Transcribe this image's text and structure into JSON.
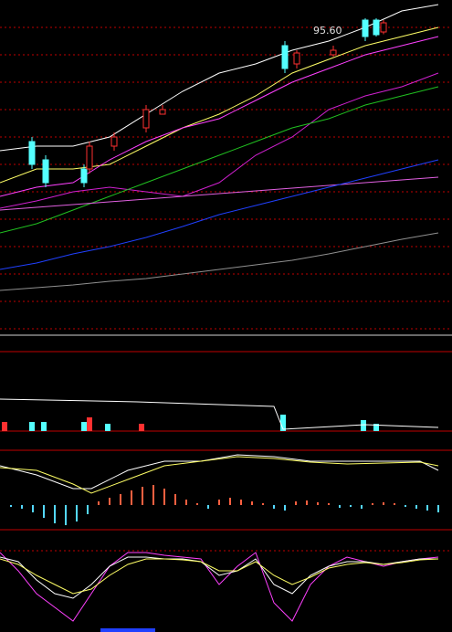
{
  "chart_data": [
    {
      "type": "candlestick",
      "annotation": "95.60",
      "annotation_at": [
        343,
        95.6
      ],
      "xlim": [
        0,
        495
      ],
      "ylim": [
        27,
        100
      ],
      "grid": true,
      "grid_color": "#c00000",
      "yticks": [
        94,
        88,
        82,
        76,
        70,
        64,
        58,
        52,
        46,
        40,
        34,
        28
      ],
      "up_color": "#ff3030",
      "down_color": "#54ffff",
      "x": [
        0,
        40,
        80,
        120,
        160,
        200,
        240,
        280,
        320,
        360,
        400,
        440,
        480
      ],
      "series": [
        {
          "color": "#ffffff",
          "values": [
            67,
            68,
            68,
            70,
            75,
            80,
            84,
            86,
            89,
            91,
            94,
            97.6,
            99
          ]
        },
        {
          "color": "#ffff66",
          "values": [
            60,
            63,
            63,
            64,
            68,
            72,
            75,
            79,
            84,
            87,
            90,
            92,
            94
          ]
        },
        {
          "color": "#ff40ff",
          "values": [
            57,
            59,
            60,
            65,
            69,
            72,
            74,
            78,
            82,
            85,
            88,
            90,
            92
          ]
        },
        {
          "color": "#d020d0",
          "values": [
            54.4,
            56,
            58,
            59,
            58,
            57,
            60,
            66,
            70,
            76,
            79,
            81,
            84
          ]
        },
        {
          "color": "#20c020",
          "values": [
            49,
            51,
            54,
            57,
            60,
            63,
            66,
            69,
            72,
            74,
            77,
            79,
            81
          ]
        },
        {
          "color": "#e060e0",
          "values": [
            54,
            54.6,
            55.2,
            55.8,
            56.4,
            57,
            57.6,
            58.2,
            58.8,
            59.4,
            60,
            60.6,
            61.2
          ]
        },
        {
          "color": "#2040ff",
          "values": [
            41,
            42.4,
            44.4,
            46,
            48,
            50.4,
            53,
            55,
            57,
            59,
            61,
            63,
            65
          ]
        },
        {
          "color": "#909090",
          "values": [
            36.4,
            37,
            37.6,
            38.4,
            39,
            40,
            41,
            42,
            43,
            44.4,
            46,
            47.6,
            49
          ]
        }
      ],
      "candles": {
        "x": [
          35,
          50,
          92,
          98,
          125,
          160,
          178,
          312,
          325,
          365,
          400,
          412,
          420
        ],
        "open": [
          69,
          65,
          63,
          63,
          68,
          72,
          75,
          90,
          86,
          88,
          95.6,
          95.6,
          93
        ],
        "high": [
          70,
          66,
          64,
          69,
          71,
          77,
          77,
          91,
          89,
          90,
          96,
          96,
          95.6
        ],
        "low": [
          63,
          59,
          59,
          62,
          67,
          71,
          75,
          84,
          85,
          87.6,
          91,
          92,
          92.5
        ],
        "close": [
          64,
          60,
          60,
          68,
          70,
          76,
          76,
          85,
          88.4,
          89,
          92,
          92.4,
          95
        ]
      }
    },
    {
      "type": "bar",
      "xlim": [
        0,
        495
      ],
      "ylim": [
        0,
        87
      ],
      "x": [
        5,
        35,
        48,
        92,
        98,
        118,
        155,
        310,
        398,
        412
      ],
      "values": [
        10,
        10,
        10,
        10,
        15,
        8,
        8,
        18,
        12,
        8
      ],
      "colors": [
        "#ff3030",
        "#54ffff",
        "#54ffff",
        "#54ffff",
        "#ff3030",
        "#54ffff",
        "#ff3030",
        "#54ffff",
        "#54ffff",
        "#54ffff"
      ],
      "line": {
        "color": "#ffffff",
        "x": [
          0,
          150,
          300,
          310,
          400,
          480
        ],
        "values": [
          35,
          32,
          27,
          2,
          7,
          4
        ]
      }
    },
    {
      "type": "macd",
      "xlim": [
        0,
        495
      ],
      "ylim": [
        -27,
        58
      ],
      "up_color": "#ff6040",
      "down_color": "#54d8ff",
      "x": [
        0,
        40,
        80,
        100,
        140,
        180,
        220,
        260,
        300,
        340,
        380,
        420,
        460,
        480
      ],
      "series": [
        {
          "color": "#ffffff",
          "values": [
            43,
            33,
            18,
            18,
            38,
            48,
            48,
            55,
            53,
            48,
            48,
            48,
            48,
            38
          ]
        },
        {
          "color": "#ffff66",
          "values": [
            41,
            38,
            23,
            13,
            28,
            43,
            48,
            53,
            51,
            47,
            45,
            46,
            47,
            43
          ]
        }
      ],
      "hist_x": [
        12,
        24,
        36,
        48,
        60,
        72,
        84,
        96,
        108,
        120,
        132,
        144,
        156,
        168,
        180,
        192,
        204,
        216,
        228,
        240,
        252,
        264,
        276,
        288,
        300,
        312,
        324,
        336,
        348,
        360,
        372,
        384,
        396,
        408,
        420,
        432,
        444,
        456,
        468,
        480
      ],
      "hist": [
        -2,
        -4,
        -8,
        -14,
        -20,
        -22,
        -18,
        -10,
        4,
        8,
        12,
        16,
        20,
        22,
        18,
        12,
        6,
        2,
        -4,
        6,
        8,
        6,
        4,
        2,
        -4,
        -6,
        4,
        5,
        3,
        2,
        -3,
        -2,
        -4,
        2,
        3,
        2,
        -2,
        -4,
        -6,
        -8
      ]
    },
    {
      "type": "line",
      "xlim": [
        0,
        495
      ],
      "ylim": [
        0,
        105
      ],
      "x": [
        0,
        20,
        40,
        60,
        80,
        100,
        120,
        140,
        160,
        180,
        200,
        220,
        240,
        260,
        280,
        300,
        320,
        340,
        360,
        380,
        400,
        420,
        440,
        460,
        480
      ],
      "series": [
        {
          "color": "#ff40ff",
          "values": [
            85,
            65,
            40,
            25,
            10,
            40,
            70,
            85,
            85,
            82,
            80,
            78,
            50,
            70,
            85,
            30,
            10,
            50,
            70,
            80,
            75,
            70,
            75,
            78,
            80
          ]
        },
        {
          "color": "#ffffff",
          "values": [
            80,
            75,
            55,
            40,
            35,
            50,
            70,
            80,
            80,
            78,
            78,
            75,
            60,
            65,
            78,
            50,
            40,
            60,
            70,
            75,
            75,
            72,
            75,
            78,
            78
          ]
        },
        {
          "color": "#ffff66",
          "values": [
            78,
            72,
            60,
            50,
            40,
            45,
            60,
            72,
            78,
            78,
            77,
            75,
            65,
            65,
            75,
            60,
            50,
            58,
            68,
            72,
            74,
            72,
            74,
            77,
            78
          ]
        }
      ]
    }
  ]
}
